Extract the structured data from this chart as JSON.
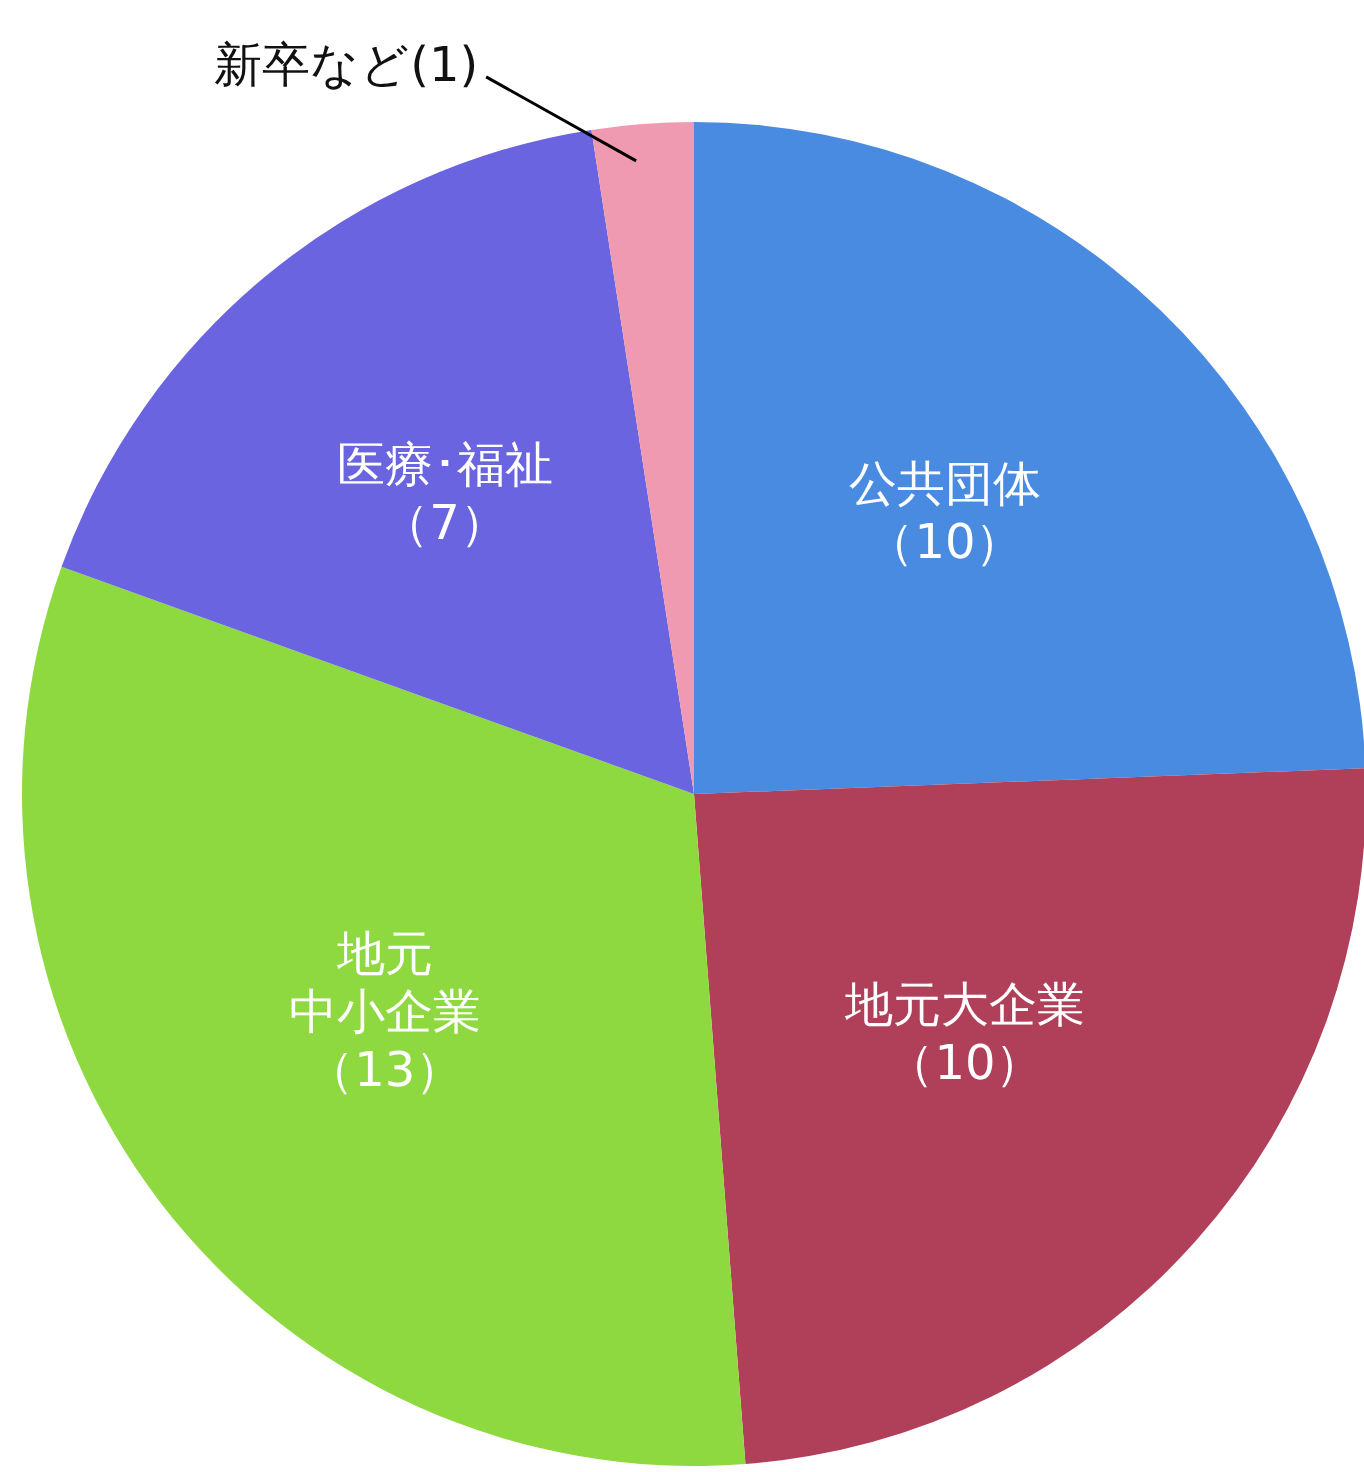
{
  "chart_data": {
    "type": "pie",
    "categories": [
      "公共団体",
      "地元大企業",
      "地元中小企業",
      "医療･福祉",
      "新卒など"
    ],
    "values": [
      10,
      10,
      13,
      7,
      1
    ],
    "value_labels": [
      "（10）",
      "（10）",
      "（13）",
      "（7）",
      "(1)"
    ],
    "colors": [
      "#4a8be2",
      "#b0405a",
      "#8ed840",
      "#6a64e0",
      "#f09ab2"
    ],
    "legend": false
  }
}
